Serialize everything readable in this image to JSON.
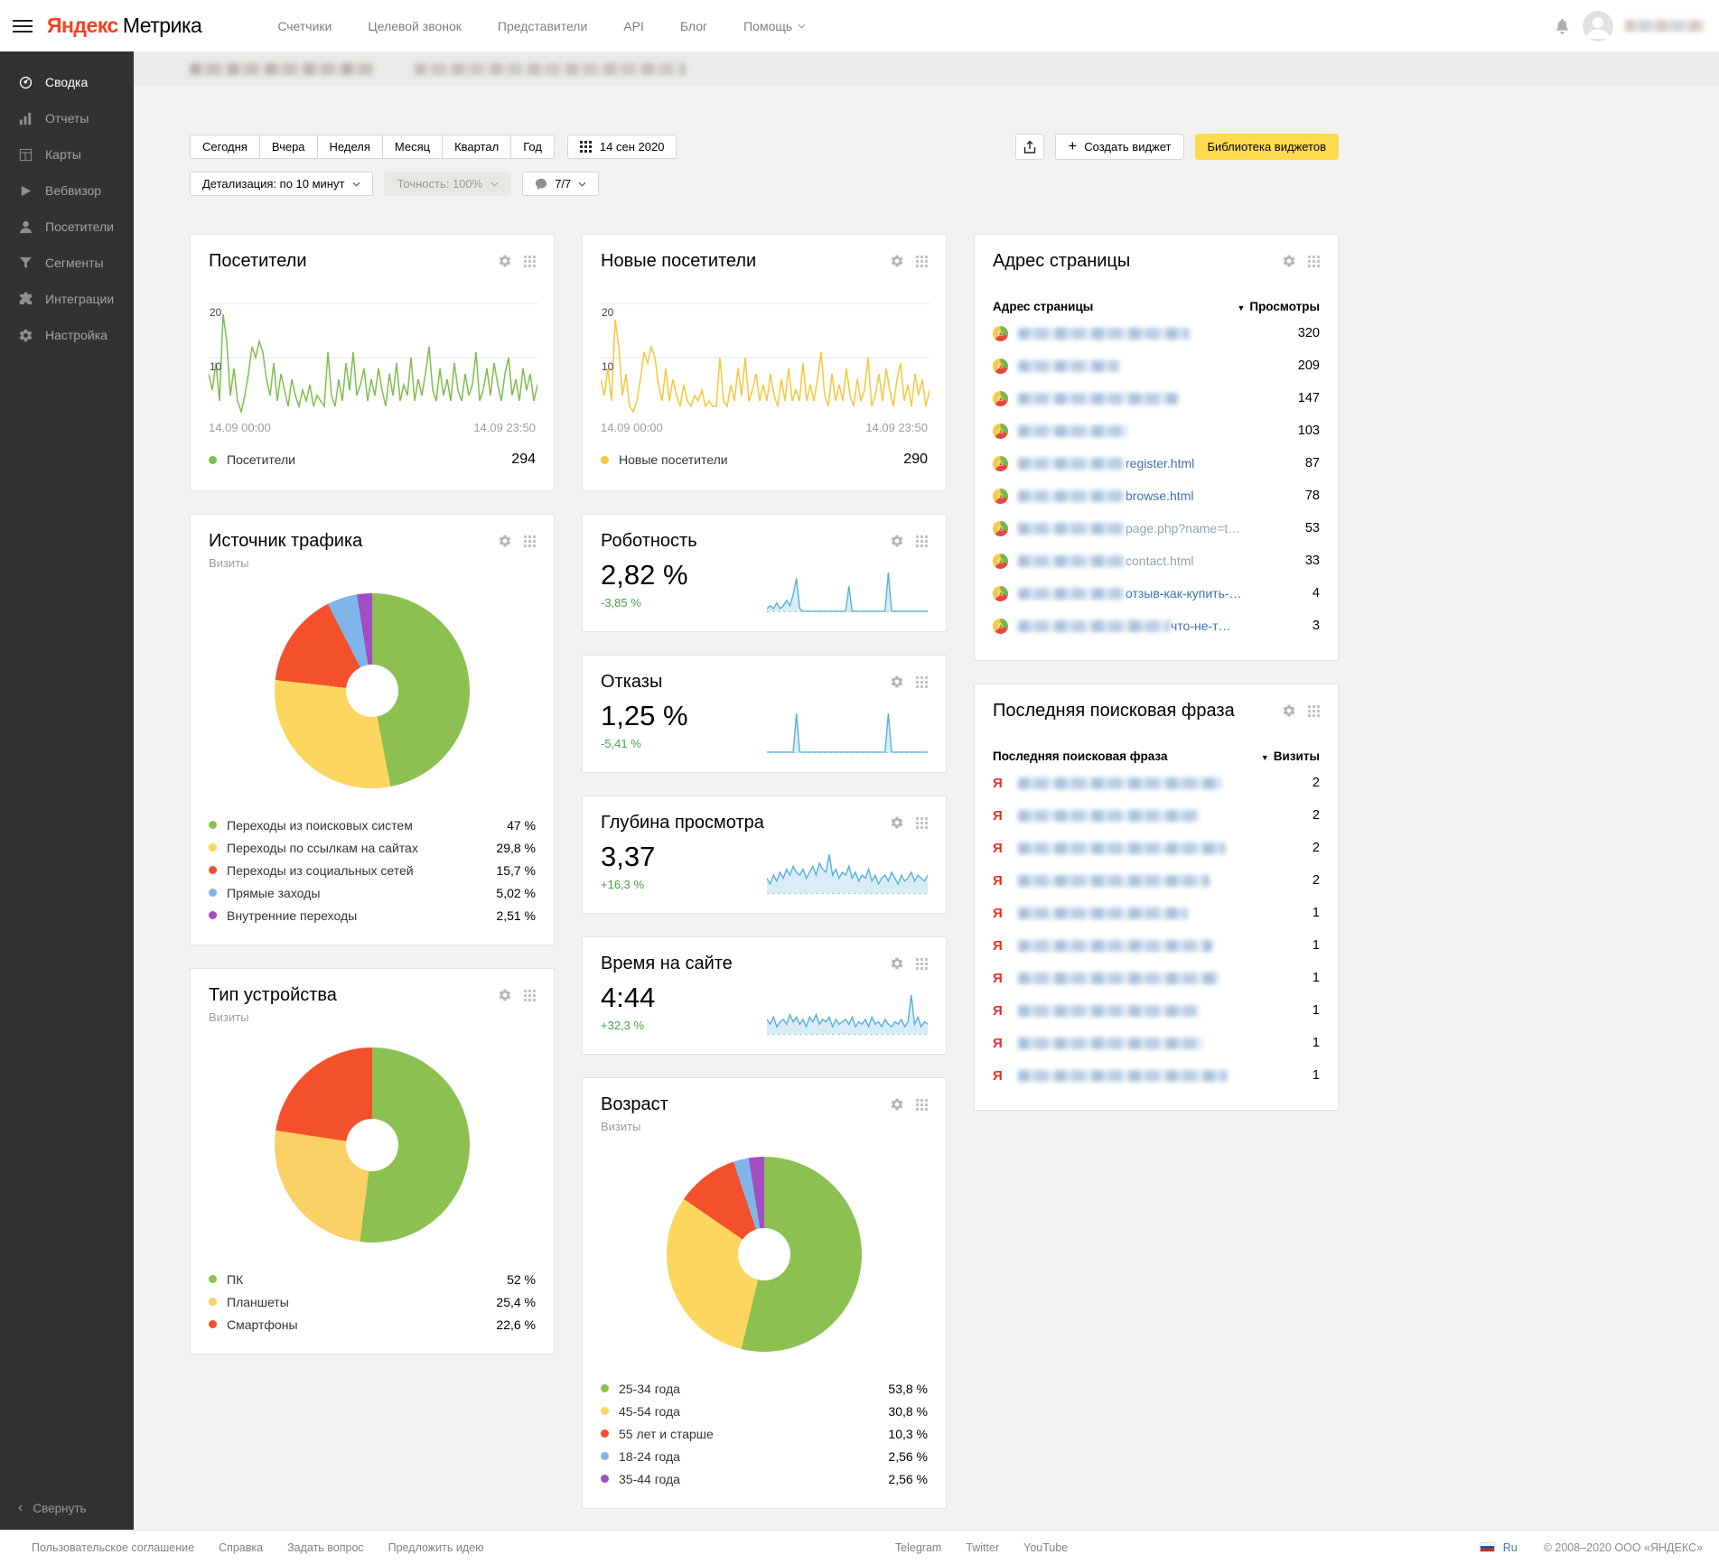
{
  "navbar": {
    "logo_primary": "Яндекс",
    "logo_secondary": "Метрика",
    "menu": [
      "Счетчики",
      "Целевой звонок",
      "Представители",
      "API",
      "Блог"
    ],
    "help": "Помощь"
  },
  "sidebar": {
    "items": [
      {
        "label": "Сводка",
        "active": true
      },
      {
        "label": "Отчеты"
      },
      {
        "label": "Карты"
      },
      {
        "label": "Вебвизор"
      },
      {
        "label": "Посетители"
      },
      {
        "label": "Сегменты"
      },
      {
        "label": "Интеграции"
      },
      {
        "label": "Настройка"
      }
    ],
    "collapse": "Свернуть"
  },
  "toolbar": {
    "date_ranges": [
      "Сегодня",
      "Вчера",
      "Неделя",
      "Месяц",
      "Квартал",
      "Год"
    ],
    "date_value": "14 сен 2020",
    "detail": "Детализация: по 10 минут",
    "accuracy": "Точность: 100%",
    "comments": "7/7",
    "create_widget": "Создать виджет",
    "widget_library": "Библиотека виджетов"
  },
  "icons": {
    "plus": "+",
    "sort_desc": "▼",
    "collapse": "‹",
    "ya": "Я",
    "favicon": "⌂"
  },
  "widgets": {
    "page_table": {
      "kind": "page",
      "title": "Адрес страницы",
      "col1": "Адрес страницы",
      "col2": "Просмотры",
      "rows": [
        {
          "suffix": "",
          "value": "320"
        },
        {
          "suffix": "",
          "value": "209"
        },
        {
          "suffix": "",
          "value": "147"
        },
        {
          "suffix": "",
          "value": "103"
        },
        {
          "suffix": "register.html",
          "value": "87"
        },
        {
          "suffix": "browse.html",
          "value": "78"
        },
        {
          "suffix": "page.php?name=t…",
          "muted": true,
          "value": "53"
        },
        {
          "suffix": "contact.html",
          "muted": true,
          "value": "33"
        },
        {
          "suffix": "отзыв-как-купить-…",
          "value": "4"
        },
        {
          "suffix": "что-не-т…",
          "value": "3"
        }
      ]
    },
    "search_table": {
      "kind": "search",
      "title": "Последняя поисковая фраза",
      "col1": "Последняя поисковая фраза",
      "col2": "Визиты",
      "rows": [
        {
          "value": "2"
        },
        {
          "value": "2"
        },
        {
          "value": "2"
        },
        {
          "value": "2"
        },
        {
          "value": "1"
        },
        {
          "value": "1"
        },
        {
          "value": "1"
        },
        {
          "value": "1"
        },
        {
          "value": "1"
        },
        {
          "value": "1"
        }
      ]
    }
  },
  "footer": {
    "links": [
      "Пользовательское соглашение",
      "Справка",
      "Задать вопрос",
      "Предложить идею"
    ],
    "social": [
      "Telegram",
      "Twitter",
      "YouTube"
    ],
    "lang": "Ru",
    "copyright": "© 2008–2020 ООО «ЯНДЕКС»"
  },
  "chart_data": [
    {
      "type": "line",
      "title": "Посетители",
      "color": "#7dbf4c",
      "ylim": [
        0,
        20
      ],
      "yticks": [
        20,
        10
      ],
      "x_start": "14.09 00:00",
      "x_end": "14.09 23:50",
      "legend": [
        {
          "label": "Посетители",
          "value": "294",
          "color": "#7dbf4c"
        }
      ],
      "values": [
        7,
        4,
        9,
        2,
        18,
        13,
        3,
        8,
        2,
        0,
        3,
        7,
        12,
        10,
        13,
        11,
        6,
        3,
        9,
        2,
        7,
        4,
        1,
        6,
        3,
        1,
        4,
        2,
        5,
        1,
        3,
        2,
        1,
        11,
        3,
        1,
        6,
        2,
        9,
        4,
        11,
        3,
        5,
        8,
        2,
        6,
        3,
        8,
        4,
        1,
        7,
        3,
        9,
        2,
        5,
        3,
        10,
        2,
        6,
        3,
        7,
        12,
        4,
        2,
        8,
        3,
        6,
        2,
        9,
        4,
        2,
        7,
        3,
        5,
        11,
        2,
        4,
        8,
        3,
        9,
        5,
        2,
        7,
        10,
        3,
        6,
        2,
        8,
        4,
        7,
        2,
        5
      ]
    },
    {
      "type": "line",
      "title": "Новые посетители",
      "color": "#f5c73b",
      "ylim": [
        0,
        20
      ],
      "yticks": [
        20,
        10
      ],
      "x_start": "14.09 00:00",
      "x_end": "14.09 23:50",
      "legend": [
        {
          "label": "Новые посетители",
          "value": "290",
          "color": "#f5c73b"
        }
      ],
      "values": [
        6,
        3,
        8,
        2,
        17,
        12,
        3,
        7,
        1,
        0,
        2,
        6,
        11,
        9,
        12,
        10,
        5,
        2,
        8,
        2,
        6,
        3,
        1,
        5,
        2,
        1,
        3,
        2,
        4,
        1,
        2,
        1,
        1,
        10,
        2,
        1,
        5,
        2,
        8,
        3,
        10,
        2,
        4,
        7,
        2,
        5,
        2,
        7,
        3,
        1,
        6,
        2,
        8,
        2,
        4,
        2,
        9,
        2,
        5,
        2,
        6,
        11,
        3,
        1,
        7,
        2,
        5,
        2,
        8,
        3,
        1,
        6,
        2,
        4,
        10,
        1,
        3,
        7,
        2,
        8,
        4,
        1,
        6,
        9,
        2,
        5,
        1,
        7,
        3,
        6,
        1,
        4
      ]
    },
    {
      "type": "pie",
      "title": "Источник трафика",
      "subtitle": "Визиты",
      "legend": [
        {
          "label": "Переходы из поисковых систем",
          "value": "47 %",
          "num": 47,
          "color": "#8cc152"
        },
        {
          "label": "Переходы по ссылкам на сайтах",
          "value": "29,8 %",
          "num": 29.8,
          "color": "#fcd65e"
        },
        {
          "label": "Переходы из социальных сетей",
          "value": "15,7 %",
          "num": 15.7,
          "color": "#f4502c"
        },
        {
          "label": "Прямые заходы",
          "value": "5,02 %",
          "num": 5.02,
          "color": "#7fb5e8"
        },
        {
          "label": "Внутренние переходы",
          "value": "2,51 %",
          "num": 2.51,
          "color": "#a24ec1"
        }
      ]
    },
    {
      "type": "area",
      "title": "Роботность",
      "value": "2,82 %",
      "delta": "-3,85 %",
      "color": "#57b1d9",
      "values": [
        1,
        2,
        1,
        3,
        1,
        2,
        4,
        2,
        6,
        12,
        1,
        0,
        0,
        0,
        0,
        0,
        0,
        0,
        0,
        0,
        0,
        0,
        0,
        0,
        0,
        9,
        0,
        0,
        0,
        0,
        0,
        0,
        0,
        0,
        0,
        0,
        0,
        14,
        0,
        0,
        0,
        0,
        0,
        0,
        0,
        0,
        0,
        0,
        0,
        0
      ]
    },
    {
      "type": "area",
      "title": "Отказы",
      "value": "1,25 %",
      "delta": "-5,41 %",
      "color": "#57b1d9",
      "values": [
        0,
        0,
        0,
        0,
        0,
        0,
        0,
        0,
        0,
        10,
        0,
        0,
        0,
        0,
        0,
        0,
        0,
        0,
        0,
        0,
        0,
        0,
        0,
        0,
        0,
        0,
        0,
        0,
        0,
        0,
        0,
        0,
        0,
        0,
        0,
        0,
        0,
        10,
        0,
        0,
        0,
        0,
        0,
        0,
        0,
        0,
        0,
        0,
        0,
        0
      ]
    },
    {
      "type": "area",
      "title": "Глубина просмотра",
      "value": "3,37",
      "delta": "+16,3 %",
      "color": "#57b1d9",
      "values": [
        5,
        3,
        6,
        4,
        7,
        5,
        8,
        6,
        9,
        7,
        6,
        8,
        5,
        7,
        9,
        6,
        10,
        8,
        7,
        13,
        6,
        8,
        5,
        7,
        6,
        9,
        5,
        7,
        4,
        6,
        5,
        8,
        4,
        6,
        3,
        5,
        6,
        4,
        7,
        5,
        3,
        6,
        4,
        5,
        7,
        4,
        6,
        5,
        4,
        6
      ]
    },
    {
      "type": "area",
      "title": "Время на сайте",
      "value": "4:44",
      "delta": "+32,3 %",
      "color": "#57b1d9",
      "values": [
        6,
        4,
        7,
        3,
        5,
        6,
        4,
        8,
        5,
        7,
        4,
        6,
        3,
        7,
        5,
        8,
        4,
        6,
        5,
        7,
        3,
        6,
        4,
        5,
        6,
        4,
        7,
        3,
        5,
        4,
        6,
        3,
        7,
        4,
        5,
        3,
        6,
        4,
        3,
        5,
        4,
        6,
        3,
        5,
        16,
        4,
        7,
        3,
        5,
        4
      ]
    },
    {
      "type": "pie",
      "title": "Тип устройства",
      "subtitle": "Визиты",
      "legend": [
        {
          "label": "ПК",
          "value": "52 %",
          "num": 52,
          "color": "#8cc152"
        },
        {
          "label": "Планшеты",
          "value": "25,4 %",
          "num": 25.4,
          "color": "#fbd064"
        },
        {
          "label": "Смартфоны",
          "value": "22,6 %",
          "num": 22.6,
          "color": "#f4502c"
        }
      ]
    },
    {
      "type": "pie",
      "title": "Возраст",
      "subtitle": "Визиты",
      "legend": [
        {
          "label": "25-34 года",
          "value": "53,8 %",
          "num": 53.8,
          "color": "#8cc152"
        },
        {
          "label": "45-54 года",
          "value": "30,8 %",
          "num": 30.8,
          "color": "#fcd65e"
        },
        {
          "label": "55 лет и старше",
          "value": "10,3 %",
          "num": 10.3,
          "color": "#f4502c"
        },
        {
          "label": "18-24 года",
          "value": "2,56 %",
          "num": 2.56,
          "color": "#7fb5e8"
        },
        {
          "label": "35-44 года",
          "value": "2,56 %",
          "num": 2.56,
          "color": "#a24ec1"
        }
      ]
    }
  ]
}
